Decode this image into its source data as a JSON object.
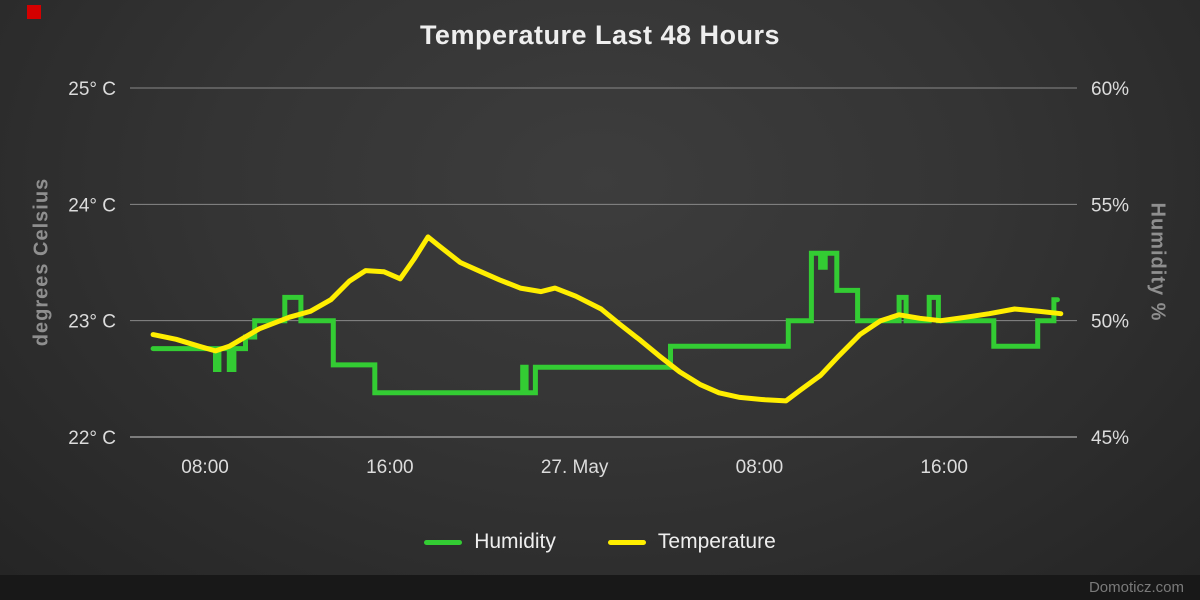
{
  "chart_data": {
    "type": "line",
    "title": "Temperature Last 48 Hours",
    "x_min": 0,
    "x_max": 41,
    "x_unit": "hours from chart start (26 May ~04:45 to 27 May ~21:45)",
    "x_ticks": [
      {
        "t": 3.25,
        "label": "08:00"
      },
      {
        "t": 11.25,
        "label": "16:00"
      },
      {
        "t": 19.25,
        "label": "27. May"
      },
      {
        "t": 27.25,
        "label": "08:00"
      },
      {
        "t": 35.25,
        "label": "16:00"
      }
    ],
    "y_left": {
      "title": "degrees Celsius",
      "min": 22,
      "max": 25,
      "ticks": [
        {
          "v": 25,
          "label": "25° C"
        },
        {
          "v": 24,
          "label": "24° C"
        },
        {
          "v": 23,
          "label": "23° C"
        },
        {
          "v": 22,
          "label": "22° C"
        }
      ]
    },
    "y_right": {
      "title": "Humidity %",
      "min": 45,
      "max": 60,
      "ticks": [
        {
          "v": 60,
          "label": "60%"
        },
        {
          "v": 55,
          "label": "55%"
        },
        {
          "v": 50,
          "label": "50%"
        },
        {
          "v": 45,
          "label": "45%"
        }
      ]
    },
    "grid": true,
    "legend_position": "bottom",
    "series": [
      {
        "name": "Humidity",
        "axis": "right",
        "color": "#33cc33",
        "points": [
          [
            1.0,
            48.8
          ],
          [
            3.7,
            48.8
          ],
          [
            3.7,
            47.9
          ],
          [
            3.85,
            47.9
          ],
          [
            3.85,
            48.8
          ],
          [
            4.3,
            48.8
          ],
          [
            4.3,
            47.9
          ],
          [
            4.5,
            47.9
          ],
          [
            4.5,
            48.8
          ],
          [
            5.0,
            48.8
          ],
          [
            5.0,
            49.3
          ],
          [
            5.4,
            49.3
          ],
          [
            5.4,
            50.0
          ],
          [
            6.7,
            50.0
          ],
          [
            6.7,
            51.0
          ],
          [
            7.4,
            51.0
          ],
          [
            7.4,
            50.0
          ],
          [
            8.8,
            50.0
          ],
          [
            8.8,
            48.1
          ],
          [
            10.6,
            48.1
          ],
          [
            10.6,
            46.9
          ],
          [
            17.0,
            46.9
          ],
          [
            17.0,
            48.0
          ],
          [
            17.15,
            48.0
          ],
          [
            17.15,
            46.9
          ],
          [
            17.55,
            46.9
          ],
          [
            17.55,
            48.0
          ],
          [
            23.4,
            48.0
          ],
          [
            23.4,
            48.9
          ],
          [
            28.5,
            48.9
          ],
          [
            28.5,
            50.0
          ],
          [
            29.5,
            50.0
          ],
          [
            29.5,
            52.9
          ],
          [
            29.9,
            52.9
          ],
          [
            29.9,
            52.3
          ],
          [
            30.1,
            52.3
          ],
          [
            30.1,
            52.9
          ],
          [
            30.6,
            52.9
          ],
          [
            30.6,
            51.3
          ],
          [
            31.5,
            51.3
          ],
          [
            31.5,
            50.0
          ],
          [
            33.3,
            50.0
          ],
          [
            33.3,
            51.0
          ],
          [
            33.6,
            51.0
          ],
          [
            33.6,
            50.0
          ],
          [
            34.6,
            50.0
          ],
          [
            34.6,
            51.0
          ],
          [
            35.0,
            51.0
          ],
          [
            35.0,
            50.0
          ],
          [
            37.4,
            50.0
          ],
          [
            37.4,
            48.9
          ],
          [
            39.3,
            48.9
          ],
          [
            39.3,
            50.0
          ],
          [
            40.0,
            50.0
          ],
          [
            40.0,
            50.9
          ],
          [
            40.15,
            50.9
          ]
        ]
      },
      {
        "name": "Temperature",
        "axis": "left",
        "color": "#ffee00",
        "points": [
          [
            1.0,
            22.88
          ],
          [
            2.0,
            22.84
          ],
          [
            3.0,
            22.78
          ],
          [
            3.7,
            22.74
          ],
          [
            4.3,
            22.78
          ],
          [
            5.6,
            22.93
          ],
          [
            6.9,
            23.03
          ],
          [
            7.8,
            23.08
          ],
          [
            8.7,
            23.18
          ],
          [
            9.5,
            23.34
          ],
          [
            10.2,
            23.43
          ],
          [
            11.0,
            23.42
          ],
          [
            11.7,
            23.36
          ],
          [
            12.3,
            23.53
          ],
          [
            12.9,
            23.72
          ],
          [
            13.4,
            23.64
          ],
          [
            14.3,
            23.5
          ],
          [
            15.2,
            23.42
          ],
          [
            16.0,
            23.35
          ],
          [
            16.9,
            23.28
          ],
          [
            17.8,
            23.25
          ],
          [
            18.4,
            23.28
          ],
          [
            19.3,
            23.21
          ],
          [
            20.4,
            23.1
          ],
          [
            21.2,
            22.97
          ],
          [
            22.1,
            22.83
          ],
          [
            22.9,
            22.7
          ],
          [
            23.8,
            22.56
          ],
          [
            24.7,
            22.45
          ],
          [
            25.5,
            22.38
          ],
          [
            26.4,
            22.34
          ],
          [
            27.5,
            22.32
          ],
          [
            28.4,
            22.31
          ],
          [
            29.0,
            22.4
          ],
          [
            29.9,
            22.53
          ],
          [
            30.7,
            22.7
          ],
          [
            31.6,
            22.88
          ],
          [
            32.5,
            23.0
          ],
          [
            33.3,
            23.05
          ],
          [
            34.2,
            23.02
          ],
          [
            35.1,
            23.0
          ],
          [
            36.2,
            23.03
          ],
          [
            37.2,
            23.06
          ],
          [
            38.3,
            23.1
          ],
          [
            39.4,
            23.08
          ],
          [
            40.3,
            23.06
          ]
        ]
      }
    ],
    "colors": {
      "grid": "#888888",
      "axis_line": "#cccccc",
      "tick_label": "#dcdcdc",
      "axis_title": "#8f8f8f",
      "title": "#eeeeee",
      "humidity": "#33cc33",
      "temperature": "#ffee00"
    }
  },
  "footer": {
    "watermark": "Domoticz.com"
  },
  "marker": {
    "color": "#d40000"
  }
}
